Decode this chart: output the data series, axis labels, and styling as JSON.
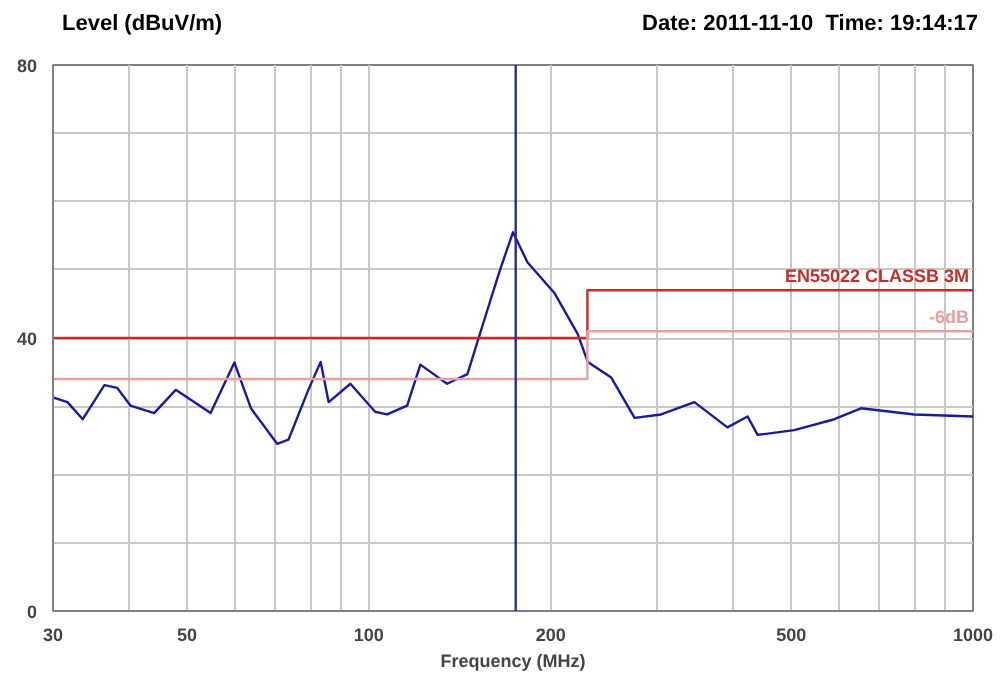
{
  "chart_data": {
    "type": "line",
    "ylabel": "Level (dBuV/m)",
    "xlabel": "Frequency (MHz)",
    "annotations": [
      "Date: 2011-11-10  Time: 19:14:17"
    ],
    "log": "x",
    "grid": true,
    "marker": "none",
    "line_style": "solid",
    "xlim": [
      30,
      1000
    ],
    "ylim": [
      0,
      80
    ],
    "xticks": [
      30,
      {
        "value": 40,
        "label": null
      },
      50,
      {
        "value": 60,
        "label": null
      },
      {
        "value": 70,
        "label": null
      },
      {
        "value": 80,
        "label": null
      },
      {
        "value": 90,
        "label": null
      },
      100,
      200,
      {
        "value": 300,
        "label": null
      },
      {
        "value": 400,
        "label": null
      },
      500,
      {
        "value": 600,
        "label": null
      },
      {
        "value": 700,
        "label": null
      },
      {
        "value": 800,
        "label": null
      },
      {
        "value": 900,
        "label": null
      },
      1000
    ],
    "yticks": [
      0,
      {
        "value": 10,
        "label": null
      },
      {
        "value": 20,
        "label": null
      },
      {
        "value": 30,
        "label": null
      },
      40,
      {
        "value": 50,
        "label": null
      },
      {
        "value": 60,
        "label": null
      },
      {
        "value": 70,
        "label": null
      },
      80
    ],
    "ref_lines": [
      {
        "axis": "x",
        "value": 175,
        "label": null,
        "color": "#2a2a9a"
      }
    ],
    "series": [
      {
        "color": "#1a1aa0",
        "x": [
          30,
          31.7,
          33.6,
          36.5,
          38.3,
          40.3,
          44.1,
          47.9,
          54.7,
          59.9,
          63.8,
          70.5,
          73.6,
          79.4,
          83.2,
          85.8,
          93.2,
          102.4,
          107.2,
          115.7,
          121.7,
          134.7,
          145.6,
          153.3,
          164.6,
          173.2,
          183,
          202.8,
          221.6,
          230.3,
          251.9,
          275.3,
          304.6,
          345.8,
          392.2,
          423.6,
          440,
          506,
          589.5,
          652.4,
          800,
          1000
        ],
        "values": [
          31.3,
          30.6,
          28.1,
          33.1,
          32.7,
          30.1,
          29.0,
          32.4,
          29.0,
          36.4,
          29.7,
          24.5,
          25.1,
          32.4,
          36.5,
          30.6,
          33.3,
          29.2,
          28.8,
          30.1,
          36.1,
          33.3,
          34.7,
          41.1,
          49.8,
          55.5,
          51.1,
          46.6,
          40.6,
          36.5,
          34.2,
          28.3,
          28.8,
          30.6,
          26.9,
          28.5,
          25.8,
          26.5,
          28.1,
          29.7,
          28.8,
          28.5
        ]
      },
      {
        "name": "EN55022 CLASSB 3M",
        "color": "#c0302a",
        "x": [
          30,
          230,
          230,
          1000
        ],
        "values": [
          40,
          40,
          47,
          47
        ]
      },
      {
        "name": "-6dB",
        "color": "#e8a0a0",
        "x": [
          30,
          230,
          230,
          1000
        ],
        "values": [
          34,
          34,
          41,
          41
        ]
      }
    ]
  }
}
